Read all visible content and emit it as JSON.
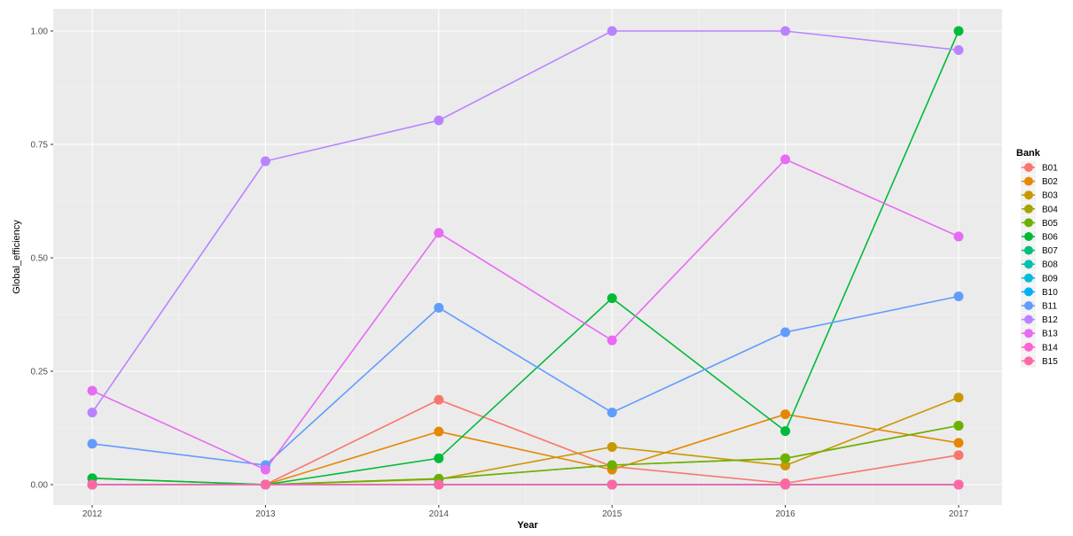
{
  "chart_data": {
    "type": "line",
    "title": "",
    "xlabel": "Year",
    "ylabel": "Global_efficiency",
    "x": [
      2012,
      2013,
      2014,
      2015,
      2016,
      2017
    ],
    "x_tick_labels": [
      "2012",
      "2013",
      "2014",
      "2015",
      "2016",
      "2017"
    ],
    "ylim": [
      0,
      1
    ],
    "y_ticks": [
      0,
      0.25,
      0.5,
      0.75,
      1
    ],
    "y_tick_labels": [
      "0.00",
      "0.25",
      "0.50",
      "0.75",
      "1.00"
    ],
    "grid": true,
    "legend": {
      "title": "Bank",
      "position": "right"
    },
    "series": [
      {
        "name": "B01",
        "color": "#F8766D",
        "values": [
          0,
          0,
          0.187,
          0.04,
          0.003,
          0.065
        ]
      },
      {
        "name": "B02",
        "color": "#E58700",
        "values": [
          0,
          0,
          0.117,
          0.033,
          0.155,
          0.092
        ]
      },
      {
        "name": "B03",
        "color": "#C99800",
        "values": [
          0,
          0,
          0.012,
          0.083,
          0.042,
          0.192
        ]
      },
      {
        "name": "B04",
        "color": "#A3A500",
        "values": [
          0,
          0,
          0.013,
          0.043,
          0.058,
          0.13
        ]
      },
      {
        "name": "B05",
        "color": "#6BB100",
        "values": [
          0.014,
          0,
          0.013,
          0.043,
          0.058,
          0.13
        ]
      },
      {
        "name": "B06",
        "color": "#00BA38",
        "values": [
          0.014,
          0,
          0.058,
          0.411,
          0.118,
          1.0
        ]
      },
      {
        "name": "B07",
        "color": "#00BF7D",
        "values": [
          0,
          0,
          0,
          0,
          0,
          0
        ]
      },
      {
        "name": "B08",
        "color": "#00C0AF",
        "values": [
          0,
          0,
          0,
          0,
          0,
          0
        ]
      },
      {
        "name": "B09",
        "color": "#00BCD8",
        "values": [
          0,
          0,
          0,
          0,
          0,
          0
        ]
      },
      {
        "name": "B10",
        "color": "#00B0F6",
        "values": [
          0,
          0,
          0,
          0,
          0,
          0
        ]
      },
      {
        "name": "B11",
        "color": "#619CFF",
        "values": [
          0.09,
          0.043,
          0.39,
          0.159,
          0.336,
          0.415
        ]
      },
      {
        "name": "B12",
        "color": "#B983FF",
        "values": [
          0.159,
          0.713,
          0.803,
          1.0,
          1.0,
          0.958
        ]
      },
      {
        "name": "B13",
        "color": "#E76BF3",
        "values": [
          0.207,
          0.033,
          0.555,
          0.318,
          0.717,
          0.547
        ]
      },
      {
        "name": "B14",
        "color": "#FD61D1",
        "values": [
          0,
          0,
          0,
          0,
          0,
          0
        ]
      },
      {
        "name": "B15",
        "color": "#FF67A4",
        "values": [
          0,
          0,
          0,
          0,
          0,
          0
        ]
      }
    ]
  }
}
